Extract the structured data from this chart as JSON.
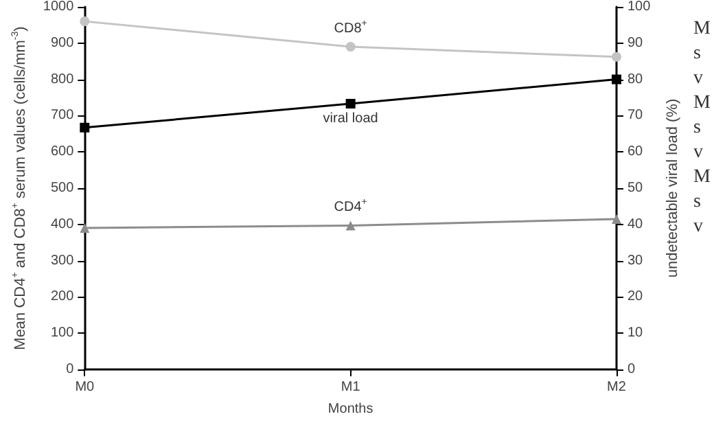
{
  "chart_data": {
    "type": "line",
    "xlabel": "Months",
    "ylabel": "Mean CD4$^{+}$ and CD8$^{+}$ serum values (cells/mm$^{-3}$)",
    "y2label": "undetectable viral load (%)",
    "categories": [
      "M0",
      "M1",
      "M2"
    ],
    "series": [
      {
        "name": "CD8$^{+}$",
        "color": "#c4c4c4",
        "marker": "circle",
        "values": [
          960,
          890,
          862
        ]
      },
      {
        "name": "viral load",
        "color": "#000000",
        "marker": "square",
        "axis": "y2",
        "values": [
          66.7,
          73.3,
          80
        ]
      },
      {
        "name": "CD4$^{+}$",
        "color": "#8c8c8c",
        "marker": "triangle",
        "values": [
          390,
          397,
          415
        ]
      }
    ],
    "ylim": [
      0,
      1000
    ],
    "yticks": [
      0,
      100,
      200,
      300,
      400,
      500,
      600,
      700,
      800,
      900,
      1000
    ],
    "y2lim": [
      0,
      100
    ],
    "y2ticks": [
      0,
      10,
      20,
      30,
      40,
      50,
      60,
      70,
      80,
      90,
      100
    ],
    "grid": false,
    "legend": false,
    "annotations": [
      "M",
      "s",
      "v",
      "M",
      "s",
      "v",
      "M",
      "s",
      "v"
    ]
  }
}
